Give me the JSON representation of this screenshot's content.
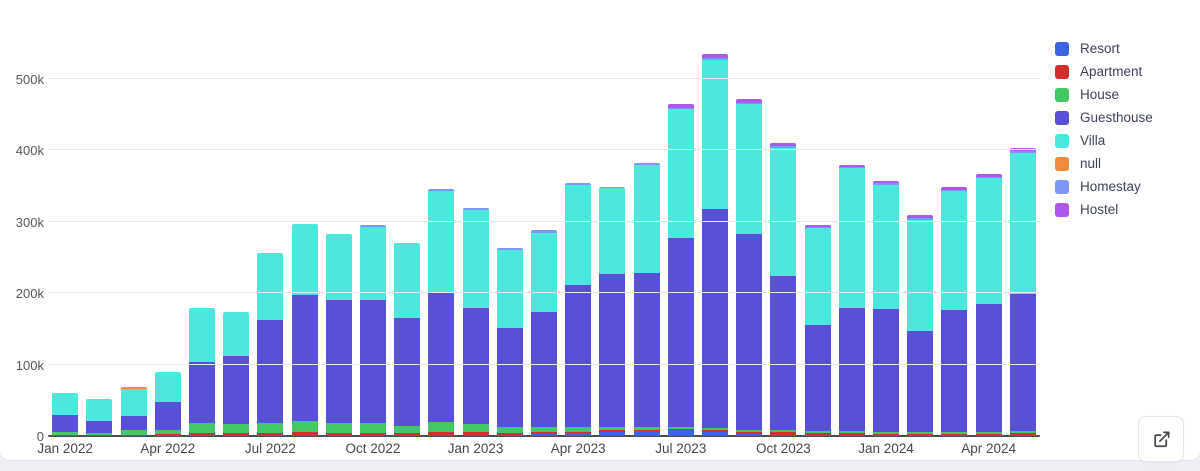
{
  "colors": {
    "page_background": "#edeff4",
    "card_background": "#ffffff",
    "gridline": "#ebebeb",
    "axis_line": "#4a4d54",
    "tick_text": "#55595f",
    "legend_text": "#3d4356",
    "icon": "#4a4a4a"
  },
  "legend": {
    "items": [
      {
        "label": "Resort",
        "color": "#3b64e4"
      },
      {
        "label": "Apartment",
        "color": "#d22e2e"
      },
      {
        "label": "House",
        "color": "#42c965"
      },
      {
        "label": "Guesthouse",
        "color": "#5850d6"
      },
      {
        "label": "Villa",
        "color": "#4ce8de"
      },
      {
        "label": "null",
        "color": "#f28b3d"
      },
      {
        "label": "Homestay",
        "color": "#7e97f4"
      },
      {
        "label": "Hostel",
        "color": "#ac58eb"
      }
    ]
  },
  "toolbar": {
    "export_icon": "open-in-new-icon"
  },
  "chart_data": {
    "type": "bar",
    "stacked": true,
    "grid": true,
    "legend_position": "right",
    "ylim": [
      0,
      550000
    ],
    "y_tick_values": [
      0,
      100000,
      200000,
      300000,
      400000,
      500000
    ],
    "y_tick_labels": [
      "0",
      "100k",
      "200k",
      "300k",
      "400k",
      "500k"
    ],
    "x": [
      "Jan 2022",
      "Feb 2022",
      "Mar 2022",
      "Apr 2022",
      "May 2022",
      "Jun 2022",
      "Jul 2022",
      "Aug 2022",
      "Sep 2022",
      "Oct 2022",
      "Nov 2022",
      "Dec 2022",
      "Jan 2023",
      "Feb 2023",
      "Mar 2023",
      "Apr 2023",
      "May 2023",
      "Jun 2023",
      "Jul 2023",
      "Aug 2023",
      "Sep 2023",
      "Oct 2023",
      "Nov 2023",
      "Dec 2023",
      "Jan 2024",
      "Feb 2024",
      "Mar 2024",
      "Apr 2024",
      "May 2024"
    ],
    "x_tick_labels": [
      "Jan 2022",
      "Apr 2022",
      "Jul 2022",
      "Oct 2022",
      "Jan 2023",
      "Apr 2023",
      "Jul 2023",
      "Oct 2023",
      "Jan 2024",
      "Apr 2024"
    ],
    "series": [
      {
        "name": "Resort",
        "color": "#3b64e4",
        "values": [
          1000,
          1000,
          1000,
          1000,
          1000,
          1000,
          1000,
          2000,
          1000,
          1000,
          1000,
          2000,
          2000,
          2000,
          3000,
          4000,
          5000,
          7000,
          8000,
          5000,
          3000,
          2000,
          2000,
          2000,
          1000,
          1000,
          1000,
          1000,
          1000
        ]
      },
      {
        "name": "Apartment",
        "color": "#d22e2e",
        "values": [
          1000,
          1000,
          1000,
          2000,
          3000,
          3000,
          3000,
          4000,
          3000,
          3000,
          3000,
          4000,
          3000,
          2000,
          2000,
          2000,
          3000,
          2000,
          2000,
          3000,
          3000,
          3000,
          2000,
          2000,
          2000,
          2000,
          2000,
          2000,
          3000
        ]
      },
      {
        "name": "House",
        "color": "#42c965",
        "values": [
          4000,
          2000,
          6000,
          6000,
          14000,
          13000,
          14000,
          15000,
          14000,
          14000,
          10000,
          13000,
          12000,
          9000,
          8000,
          7000,
          5000,
          3000,
          3000,
          3000,
          3000,
          3000,
          3000,
          3000,
          3000,
          3000,
          2000,
          2000,
          3000
        ]
      },
      {
        "name": "Guesthouse",
        "color": "#5850d6",
        "values": [
          24000,
          17000,
          20000,
          38000,
          86000,
          95000,
          144000,
          176000,
          172000,
          172000,
          152000,
          183000,
          162000,
          139000,
          161000,
          199000,
          214000,
          216000,
          265000,
          307000,
          274000,
          216000,
          148000,
          173000,
          172000,
          141000,
          172000,
          180000,
          192000
        ]
      },
      {
        "name": "Villa",
        "color": "#4ce8de",
        "values": [
          30000,
          31000,
          38000,
          42000,
          75000,
          62000,
          94000,
          100000,
          93000,
          103000,
          104000,
          141000,
          137000,
          108000,
          111000,
          139000,
          120000,
          151000,
          180000,
          208000,
          182000,
          180000,
          136000,
          195000,
          174000,
          156000,
          166000,
          176000,
          198000
        ]
      },
      {
        "name": "null",
        "color": "#f28b3d",
        "values": [
          0,
          0,
          3000,
          0,
          0,
          0,
          0,
          0,
          0,
          0,
          0,
          0,
          0,
          0,
          0,
          0,
          0,
          0,
          0,
          0,
          0,
          0,
          0,
          0,
          0,
          0,
          0,
          0,
          0
        ]
      },
      {
        "name": "Homestay",
        "color": "#7e97f4",
        "values": [
          0,
          0,
          0,
          0,
          0,
          0,
          0,
          0,
          0,
          3000,
          0,
          3000,
          3000,
          3000,
          3000,
          3000,
          2000,
          3000,
          2000,
          3000,
          2000,
          2000,
          2000,
          2000,
          2000,
          2000,
          2000,
          2000,
          2000
        ]
      },
      {
        "name": "Hostel",
        "color": "#ac58eb",
        "values": [
          0,
          0,
          0,
          0,
          0,
          0,
          0,
          0,
          0,
          0,
          0,
          0,
          0,
          0,
          0,
          0,
          0,
          0,
          5000,
          6000,
          5000,
          4000,
          3000,
          3000,
          3000,
          4000,
          4000,
          4000,
          4000
        ]
      }
    ]
  }
}
